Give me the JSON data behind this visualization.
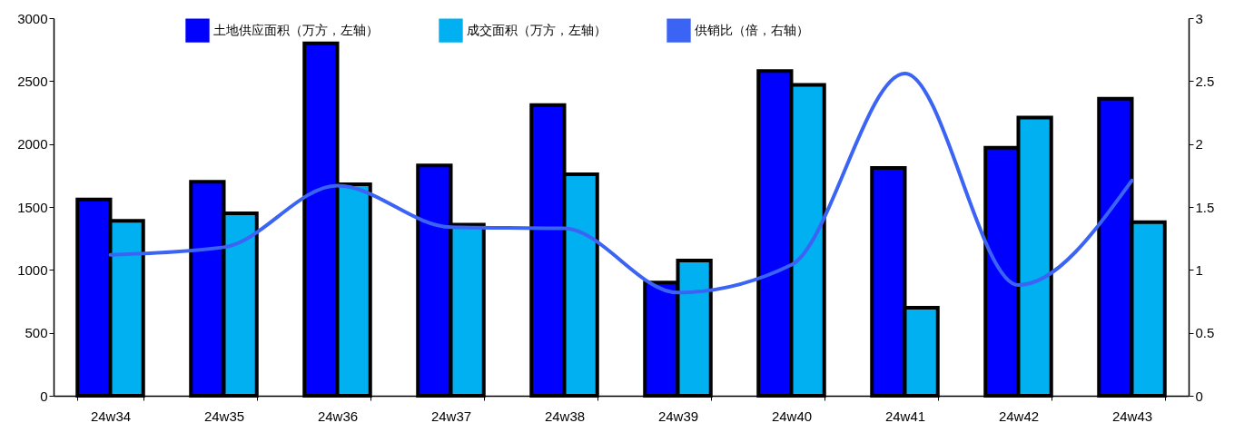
{
  "chart_data": {
    "type": "bar",
    "categories": [
      "24w34",
      "24w35",
      "24w36",
      "24w37",
      "24w38",
      "24w39",
      "24w40",
      "24w41",
      "24w42",
      "24w43"
    ],
    "series": [
      {
        "name": "土地供应面积（万方，左轴）",
        "color": "#0000ff",
        "values": [
          1560,
          1700,
          2800,
          1830,
          2310,
          900,
          2580,
          1810,
          1970,
          2360
        ]
      },
      {
        "name": "成交面积（万方，左轴）",
        "color": "#00b0f0",
        "values": [
          1390,
          1450,
          1680,
          1360,
          1760,
          1075,
          2470,
          700,
          2210,
          1380
        ]
      },
      {
        "name": "供销比（倍，右轴）",
        "type": "line",
        "axis": "y2",
        "color": "#3b64f5",
        "values": [
          1.12,
          1.18,
          1.67,
          1.34,
          1.33,
          0.82,
          1.04,
          2.56,
          0.88,
          1.71
        ]
      }
    ],
    "ylim": [
      0,
      3000
    ],
    "yticks": [
      0,
      500,
      1000,
      1500,
      2000,
      2500,
      3000
    ],
    "y2lim": [
      0,
      3
    ],
    "y2ticks": [
      0,
      0.5,
      1,
      1.5,
      2,
      2.5,
      3
    ],
    "legend": "top",
    "grid": false
  }
}
